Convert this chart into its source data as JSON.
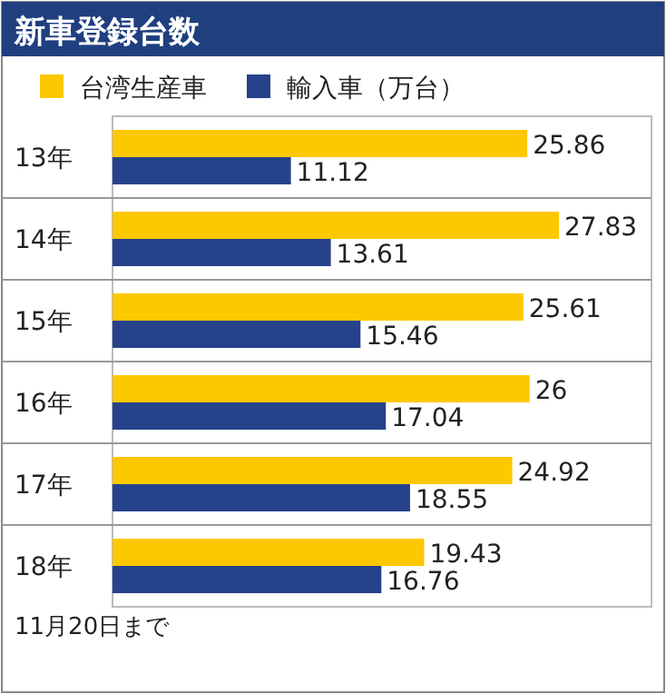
{
  "chart_data": {
    "type": "bar",
    "orientation": "horizontal",
    "title": "新車登録台数",
    "categories": [
      "13年",
      "14年",
      "15年",
      "16年",
      "17年",
      "18年"
    ],
    "series": [
      {
        "name": "台湾生産車",
        "color": "#fdc800",
        "values": [
          25.86,
          27.83,
          25.61,
          26,
          24.92,
          19.43
        ]
      },
      {
        "name": "輸入車（万台）",
        "color": "#26428b",
        "values": [
          11.12,
          13.61,
          15.46,
          17.04,
          18.55,
          16.76
        ]
      }
    ],
    "data_labels": true,
    "legend": "top",
    "grid": "y",
    "annotations": [
      "11月20日まで"
    ]
  }
}
